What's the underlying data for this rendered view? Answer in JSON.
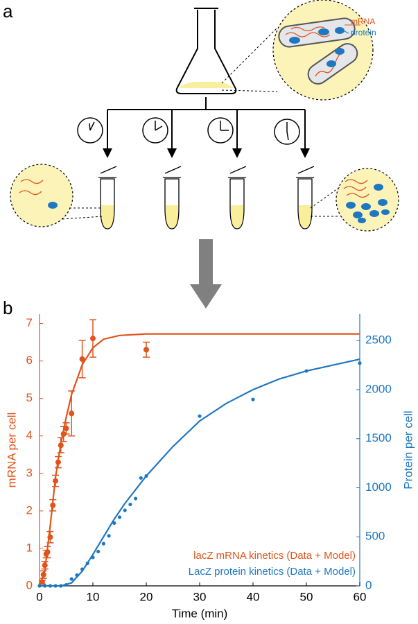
{
  "panel_a": {
    "label": "a",
    "mrna_label": "mRNA",
    "protein_label": "protein"
  },
  "chart_data": {
    "type": "scatter",
    "panel_label": "b",
    "xlabel": "Time (min)",
    "ylabel": "mRNA per cell",
    "y2label": "Protein per cell",
    "xlim": [
      0,
      60
    ],
    "xticks": [
      0,
      10,
      20,
      30,
      40,
      50,
      60
    ],
    "ylim": [
      0,
      7.25
    ],
    "yticks": [
      0,
      1,
      2,
      3,
      4,
      5,
      6,
      7
    ],
    "y2lim": [
      0,
      2770
    ],
    "y2ticks": [
      0,
      500,
      1000,
      1500,
      2000,
      2500
    ],
    "legend": "lower right",
    "series": [
      {
        "name": "lacZ mRNA kinetics (Data + Model)",
        "color": "#e0541c",
        "axis": "y",
        "x": [
          0.5,
          0.75,
          1,
          1.25,
          1.5,
          2,
          2.5,
          3,
          3.5,
          4,
          4.5,
          5,
          6,
          8,
          10,
          20
        ],
        "values": [
          0.1,
          0.3,
          0.55,
          0.85,
          0.9,
          1.3,
          2.15,
          2.8,
          3.3,
          3.75,
          4.05,
          4.2,
          4.6,
          6.05,
          6.6,
          6.3
        ],
        "errors": [
          0.05,
          0.1,
          0.1,
          0.1,
          0.15,
          0.15,
          0.15,
          0.15,
          0.15,
          0.2,
          0.2,
          0.15,
          0.6,
          0.5,
          0.5,
          0.2
        ],
        "fit_x": [
          0,
          1,
          2,
          3,
          4,
          5,
          6,
          7,
          8,
          10,
          12,
          15,
          20,
          30,
          40,
          50,
          60
        ],
        "fit_values": [
          0,
          0.4,
          1.6,
          2.9,
          3.8,
          4.5,
          5.1,
          5.5,
          5.9,
          6.35,
          6.58,
          6.68,
          6.72,
          6.72,
          6.72,
          6.72,
          6.72
        ]
      },
      {
        "name": "LacZ protein kinetics (Data + Model)",
        "color": "#1f77c0",
        "axis": "y2",
        "x": [
          0,
          1,
          2,
          3,
          4,
          5,
          6,
          7,
          8,
          9,
          10,
          11,
          12,
          13,
          14,
          15,
          16,
          17,
          18,
          19,
          20,
          30,
          40,
          50,
          60
        ],
        "values": [
          0,
          0,
          0,
          0,
          0,
          10,
          70,
          110,
          170,
          230,
          290,
          350,
          430,
          510,
          640,
          700,
          770,
          830,
          890,
          1100,
          1120,
          1730,
          1900,
          2190,
          2270
        ],
        "fit_x": [
          0,
          4,
          6,
          8,
          10,
          12,
          14,
          16,
          18,
          20,
          25,
          30,
          35,
          40,
          45,
          50,
          55,
          60
        ],
        "fit_values": [
          0,
          0,
          30,
          150,
          320,
          500,
          680,
          840,
          980,
          1120,
          1420,
          1680,
          1860,
          2000,
          2110,
          2190,
          2250,
          2310
        ]
      }
    ]
  }
}
